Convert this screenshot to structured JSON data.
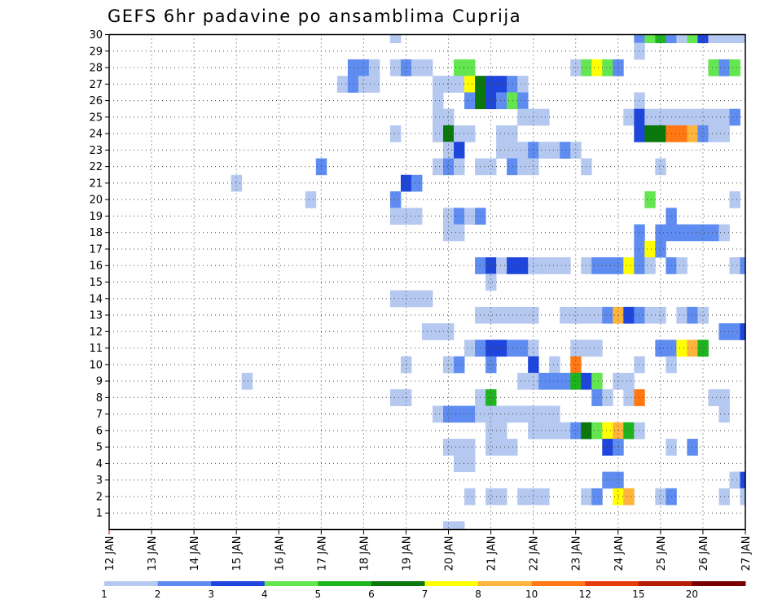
{
  "chart_data": {
    "type": "heatmap",
    "title": "GEFS 6hr padavine po ansamblima Cuprija",
    "xlabel": "",
    "ylabel": "",
    "x_ticks": [
      "12 JAN",
      "13 JAN",
      "14 JAN",
      "15 JAN",
      "16 JAN",
      "17 JAN",
      "18 JAN",
      "19 JAN",
      "20 JAN",
      "21 JAN",
      "22 JAN",
      "23 JAN",
      "24 JAN",
      "25 JAN",
      "26 JAN",
      "27 JAN"
    ],
    "y_ticks": [
      "1",
      "2",
      "3",
      "4",
      "5",
      "6",
      "7",
      "8",
      "9",
      "10",
      "11",
      "12",
      "13",
      "14",
      "15",
      "16",
      "17",
      "18",
      "19",
      "20",
      "21",
      "22",
      "23",
      "24",
      "25",
      "26",
      "27",
      "28",
      "29",
      "30"
    ],
    "x_range": [
      0,
      60
    ],
    "y_range": [
      0,
      30
    ],
    "legend": {
      "placement": "bottom",
      "labels": [
        "1",
        "2",
        "3",
        "4",
        "5",
        "6",
        "7",
        "8",
        "10",
        "12",
        "15",
        "20"
      ],
      "colors": [
        "#b4c8f0",
        "#5f8cf0",
        "#1e46dc",
        "#64e650",
        "#1eb41e",
        "#0a780a",
        "#ffff00",
        "#ffb43c",
        "#ff7814",
        "#e63c0a",
        "#b41e00",
        "#780000"
      ]
    },
    "cells_format": "[member, time_step_6h, category_index]",
    "cells": [
      [
        30,
        27,
        0
      ],
      [
        30,
        50,
        1
      ],
      [
        30,
        51,
        3
      ],
      [
        30,
        52,
        4
      ],
      [
        30,
        53,
        1
      ],
      [
        30,
        54,
        0
      ],
      [
        30,
        55,
        3
      ],
      [
        30,
        56,
        2
      ],
      [
        30,
        57,
        0
      ],
      [
        30,
        58,
        0
      ],
      [
        30,
        59,
        0
      ],
      [
        30,
        60,
        0
      ],
      [
        29,
        50,
        0
      ],
      [
        28,
        23,
        1
      ],
      [
        28,
        24,
        1
      ],
      [
        28,
        25,
        0
      ],
      [
        28,
        27,
        0
      ],
      [
        28,
        28,
        1
      ],
      [
        28,
        29,
        0
      ],
      [
        28,
        30,
        0
      ],
      [
        28,
        33,
        3
      ],
      [
        28,
        34,
        3
      ],
      [
        28,
        44,
        0
      ],
      [
        28,
        45,
        3
      ],
      [
        28,
        46,
        6
      ],
      [
        28,
        47,
        3
      ],
      [
        28,
        48,
        1
      ],
      [
        28,
        57,
        3
      ],
      [
        28,
        58,
        1
      ],
      [
        28,
        59,
        3
      ],
      [
        27,
        22,
        0
      ],
      [
        27,
        23,
        1
      ],
      [
        27,
        24,
        0
      ],
      [
        27,
        25,
        0
      ],
      [
        27,
        31,
        0
      ],
      [
        27,
        32,
        0
      ],
      [
        27,
        33,
        0
      ],
      [
        27,
        34,
        6
      ],
      [
        27,
        35,
        5
      ],
      [
        27,
        36,
        2
      ],
      [
        27,
        37,
        2
      ],
      [
        27,
        38,
        1
      ],
      [
        27,
        39,
        0
      ],
      [
        26,
        31,
        0
      ],
      [
        26,
        34,
        1
      ],
      [
        26,
        35,
        5
      ],
      [
        26,
        36,
        2
      ],
      [
        26,
        37,
        1
      ],
      [
        26,
        38,
        3
      ],
      [
        26,
        39,
        1
      ],
      [
        26,
        50,
        0
      ],
      [
        25,
        31,
        0
      ],
      [
        25,
        32,
        0
      ],
      [
        25,
        39,
        0
      ],
      [
        25,
        40,
        0
      ],
      [
        25,
        41,
        0
      ],
      [
        25,
        49,
        0
      ],
      [
        25,
        50,
        2
      ],
      [
        25,
        51,
        0
      ],
      [
        25,
        52,
        0
      ],
      [
        25,
        53,
        0
      ],
      [
        25,
        54,
        0
      ],
      [
        25,
        55,
        0
      ],
      [
        25,
        56,
        0
      ],
      [
        25,
        57,
        0
      ],
      [
        25,
        58,
        0
      ],
      [
        25,
        59,
        1
      ],
      [
        24,
        27,
        0
      ],
      [
        24,
        31,
        0
      ],
      [
        24,
        32,
        5
      ],
      [
        24,
        33,
        0
      ],
      [
        24,
        34,
        0
      ],
      [
        24,
        37,
        0
      ],
      [
        24,
        38,
        0
      ],
      [
        24,
        50,
        2
      ],
      [
        24,
        51,
        5
      ],
      [
        24,
        52,
        5
      ],
      [
        24,
        53,
        8
      ],
      [
        24,
        54,
        8
      ],
      [
        24,
        55,
        7
      ],
      [
        24,
        56,
        1
      ],
      [
        24,
        57,
        0
      ],
      [
        24,
        58,
        0
      ],
      [
        23,
        32,
        0
      ],
      [
        23,
        33,
        2
      ],
      [
        23,
        37,
        0
      ],
      [
        23,
        38,
        0
      ],
      [
        23,
        39,
        0
      ],
      [
        23,
        40,
        1
      ],
      [
        23,
        41,
        0
      ],
      [
        23,
        42,
        0
      ],
      [
        23,
        43,
        1
      ],
      [
        23,
        44,
        0
      ],
      [
        22,
        20,
        1
      ],
      [
        22,
        31,
        0
      ],
      [
        22,
        32,
        1
      ],
      [
        22,
        33,
        0
      ],
      [
        22,
        35,
        0
      ],
      [
        22,
        36,
        0
      ],
      [
        22,
        38,
        1
      ],
      [
        22,
        39,
        0
      ],
      [
        22,
        40,
        0
      ],
      [
        22,
        45,
        0
      ],
      [
        22,
        52,
        0
      ],
      [
        21,
        12,
        0
      ],
      [
        21,
        28,
        2
      ],
      [
        21,
        29,
        1
      ],
      [
        20,
        19,
        0
      ],
      [
        20,
        27,
        1
      ],
      [
        20,
        51,
        3
      ],
      [
        20,
        59,
        0
      ],
      [
        19,
        27,
        0
      ],
      [
        19,
        28,
        0
      ],
      [
        19,
        29,
        0
      ],
      [
        19,
        32,
        0
      ],
      [
        19,
        33,
        1
      ],
      [
        19,
        34,
        0
      ],
      [
        19,
        35,
        1
      ],
      [
        19,
        53,
        1
      ],
      [
        18,
        32,
        0
      ],
      [
        18,
        33,
        0
      ],
      [
        18,
        50,
        1
      ],
      [
        18,
        52,
        1
      ],
      [
        18,
        53,
        1
      ],
      [
        18,
        54,
        1
      ],
      [
        18,
        55,
        1
      ],
      [
        18,
        56,
        1
      ],
      [
        18,
        57,
        1
      ],
      [
        18,
        58,
        0
      ],
      [
        17,
        50,
        1
      ],
      [
        17,
        51,
        6
      ],
      [
        17,
        52,
        1
      ],
      [
        16,
        35,
        1
      ],
      [
        16,
        36,
        2
      ],
      [
        16,
        37,
        0
      ],
      [
        16,
        38,
        2
      ],
      [
        16,
        39,
        2
      ],
      [
        16,
        40,
        0
      ],
      [
        16,
        41,
        0
      ],
      [
        16,
        42,
        0
      ],
      [
        16,
        43,
        0
      ],
      [
        16,
        45,
        0
      ],
      [
        16,
        46,
        1
      ],
      [
        16,
        47,
        1
      ],
      [
        16,
        48,
        1
      ],
      [
        16,
        49,
        6
      ],
      [
        16,
        50,
        1
      ],
      [
        16,
        51,
        0
      ],
      [
        16,
        53,
        1
      ],
      [
        16,
        54,
        0
      ],
      [
        16,
        59,
        0
      ],
      [
        16,
        60,
        1
      ],
      [
        15,
        36,
        0
      ],
      [
        14,
        27,
        0
      ],
      [
        14,
        28,
        0
      ],
      [
        14,
        29,
        0
      ],
      [
        14,
        30,
        0
      ],
      [
        13,
        35,
        0
      ],
      [
        13,
        36,
        0
      ],
      [
        13,
        37,
        0
      ],
      [
        13,
        38,
        0
      ],
      [
        13,
        39,
        0
      ],
      [
        13,
        40,
        0
      ],
      [
        13,
        43,
        0
      ],
      [
        13,
        44,
        0
      ],
      [
        13,
        45,
        0
      ],
      [
        13,
        46,
        0
      ],
      [
        13,
        47,
        1
      ],
      [
        13,
        48,
        7
      ],
      [
        13,
        49,
        2
      ],
      [
        13,
        50,
        1
      ],
      [
        13,
        51,
        0
      ],
      [
        13,
        52,
        0
      ],
      [
        13,
        54,
        0
      ],
      [
        13,
        55,
        1
      ],
      [
        13,
        56,
        0
      ],
      [
        12,
        30,
        0
      ],
      [
        12,
        31,
        0
      ],
      [
        12,
        32,
        0
      ],
      [
        12,
        58,
        1
      ],
      [
        12,
        59,
        1
      ],
      [
        12,
        60,
        2
      ],
      [
        11,
        34,
        0
      ],
      [
        11,
        35,
        1
      ],
      [
        11,
        36,
        2
      ],
      [
        11,
        37,
        2
      ],
      [
        11,
        38,
        1
      ],
      [
        11,
        39,
        1
      ],
      [
        11,
        40,
        0
      ],
      [
        11,
        44,
        0
      ],
      [
        11,
        45,
        0
      ],
      [
        11,
        46,
        0
      ],
      [
        11,
        52,
        1
      ],
      [
        11,
        53,
        1
      ],
      [
        11,
        54,
        6
      ],
      [
        11,
        55,
        7
      ],
      [
        11,
        56,
        4
      ],
      [
        10,
        28,
        0
      ],
      [
        10,
        32,
        0
      ],
      [
        10,
        33,
        1
      ],
      [
        10,
        36,
        1
      ],
      [
        10,
        40,
        2
      ],
      [
        10,
        42,
        0
      ],
      [
        10,
        44,
        8
      ],
      [
        10,
        50,
        0
      ],
      [
        10,
        53,
        0
      ],
      [
        9,
        13,
        0
      ],
      [
        9,
        39,
        0
      ],
      [
        9,
        40,
        0
      ],
      [
        9,
        41,
        1
      ],
      [
        9,
        42,
        1
      ],
      [
        9,
        43,
        1
      ],
      [
        9,
        44,
        4
      ],
      [
        9,
        45,
        2
      ],
      [
        9,
        46,
        3
      ],
      [
        9,
        48,
        0
      ],
      [
        9,
        49,
        0
      ],
      [
        8,
        27,
        0
      ],
      [
        8,
        28,
        0
      ],
      [
        8,
        35,
        0
      ],
      [
        8,
        36,
        4
      ],
      [
        8,
        46,
        1
      ],
      [
        8,
        47,
        0
      ],
      [
        8,
        49,
        0
      ],
      [
        8,
        50,
        8
      ],
      [
        8,
        57,
        0
      ],
      [
        8,
        58,
        0
      ],
      [
        7,
        31,
        0
      ],
      [
        7,
        32,
        1
      ],
      [
        7,
        33,
        1
      ],
      [
        7,
        34,
        1
      ],
      [
        7,
        35,
        0
      ],
      [
        7,
        36,
        0
      ],
      [
        7,
        37,
        0
      ],
      [
        7,
        38,
        0
      ],
      [
        7,
        39,
        0
      ],
      [
        7,
        40,
        0
      ],
      [
        7,
        41,
        0
      ],
      [
        7,
        42,
        0
      ],
      [
        7,
        58,
        0
      ],
      [
        6,
        36,
        0
      ],
      [
        6,
        37,
        0
      ],
      [
        6,
        40,
        0
      ],
      [
        6,
        41,
        0
      ],
      [
        6,
        42,
        0
      ],
      [
        6,
        43,
        0
      ],
      [
        6,
        44,
        1
      ],
      [
        6,
        45,
        5
      ],
      [
        6,
        46,
        3
      ],
      [
        6,
        47,
        6
      ],
      [
        6,
        48,
        7
      ],
      [
        6,
        49,
        4
      ],
      [
        6,
        50,
        0
      ],
      [
        5,
        32,
        0
      ],
      [
        5,
        33,
        0
      ],
      [
        5,
        34,
        0
      ],
      [
        5,
        36,
        0
      ],
      [
        5,
        37,
        0
      ],
      [
        5,
        38,
        0
      ],
      [
        5,
        47,
        2
      ],
      [
        5,
        48,
        1
      ],
      [
        5,
        53,
        0
      ],
      [
        5,
        55,
        1
      ],
      [
        4,
        33,
        0
      ],
      [
        4,
        34,
        0
      ],
      [
        3,
        47,
        1
      ],
      [
        3,
        48,
        1
      ],
      [
        3,
        59,
        0
      ],
      [
        3,
        60,
        2
      ],
      [
        2,
        34,
        0
      ],
      [
        2,
        36,
        0
      ],
      [
        2,
        37,
        0
      ],
      [
        2,
        39,
        0
      ],
      [
        2,
        40,
        0
      ],
      [
        2,
        41,
        0
      ],
      [
        2,
        45,
        0
      ],
      [
        2,
        46,
        1
      ],
      [
        2,
        48,
        6
      ],
      [
        2,
        49,
        7
      ],
      [
        2,
        52,
        0
      ],
      [
        2,
        53,
        1
      ],
      [
        2,
        58,
        0
      ],
      [
        2,
        60,
        0
      ],
      [
        0,
        32,
        0
      ],
      [
        0,
        33,
        0
      ]
    ]
  }
}
